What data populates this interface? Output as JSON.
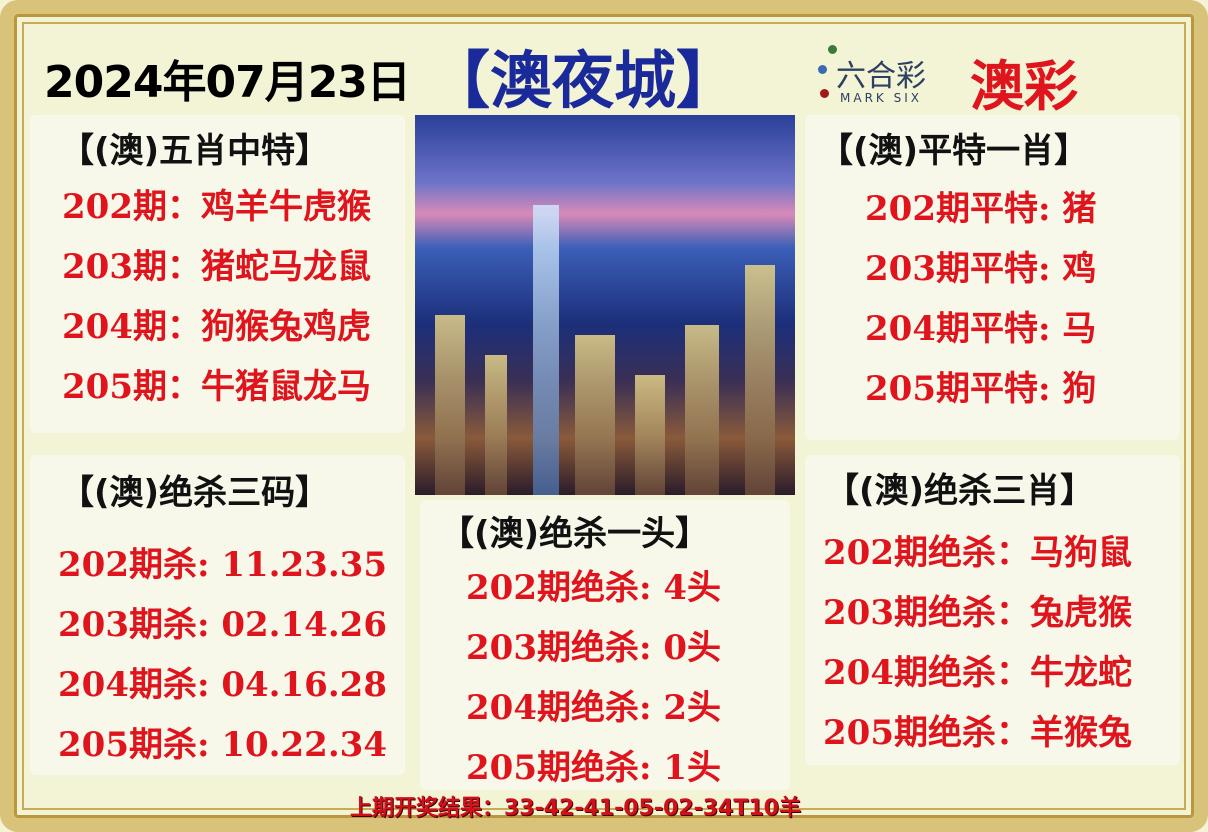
{
  "header": {
    "date": "2024年07月23日",
    "brand": "【澳夜城】",
    "logo_cn": "六合彩",
    "logo_en": "MARK SIX",
    "logo_side": "澳彩"
  },
  "panels": {
    "five_zodiac": {
      "title": "【(澳)五肖中特】",
      "rows": [
        "202期：鸡羊牛虎猴",
        "203期：猪蛇马龙鼠",
        "204期：狗猴兔鸡虎",
        "205期：牛猪鼠龙马"
      ]
    },
    "flat_one": {
      "title": "【(澳)平特一肖】",
      "rows": [
        "202期平特:  猪",
        "203期平特:  鸡",
        "204期平特:  马",
        "205期平特:  狗"
      ]
    },
    "kill_three_codes": {
      "title": "【(澳)绝杀三码】",
      "rows": [
        "202期杀: 11.23.35",
        "203期杀: 02.14.26",
        "204期杀: 04.16.28",
        "205期杀: 10.22.34"
      ]
    },
    "kill_one_head": {
      "title": "【(澳)绝杀一头】",
      "rows": [
        "202期绝杀:  4头",
        "203期绝杀:  0头",
        "204期绝杀:  2头",
        "205期绝杀:  1头"
      ]
    },
    "kill_three_zodiac": {
      "title": "【(澳)绝杀三肖】",
      "rows": [
        "202期绝杀：马狗鼠",
        "203期绝杀：兔虎猴",
        "204期绝杀：牛龙蛇",
        "205期绝杀：羊猴兔"
      ]
    }
  },
  "footer": {
    "last_result": "上期开奖结果：33-42-41-05-02-34T10羊"
  },
  "colors": {
    "red": "#e0141c",
    "blue": "#1a2a9a",
    "gold": "#d9c27a"
  }
}
